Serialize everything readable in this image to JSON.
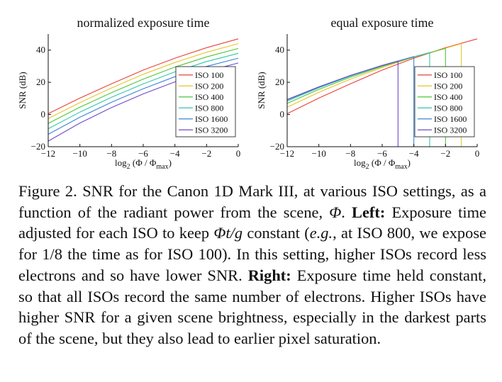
{
  "chart_data": [
    {
      "type": "line",
      "title": "normalized exposure time",
      "xlabel_base": "log",
      "xlabel_sub": "2",
      "xlabel_mid": " (Φ / Φ",
      "xlabel_max": "max",
      "xlabel_end": ")",
      "ylabel": "SNR (dB)",
      "xlim": [
        -12,
        0
      ],
      "ylim": [
        -20,
        50
      ],
      "xticks": [
        "−12",
        "−10",
        "−8",
        "−6",
        "−4",
        "−2",
        "0"
      ],
      "xtick_values": [
        -12,
        -10,
        -8,
        -6,
        -4,
        -2,
        0
      ],
      "yticks": [
        "−20",
        "0",
        "20",
        "40"
      ],
      "ytick_values": [
        -20,
        0,
        20,
        40
      ],
      "grid": false,
      "legend_position": "lower-right",
      "series": [
        {
          "name": "ISO 100",
          "color": "#e8413c",
          "x": [
            -12,
            -10,
            -8,
            -6,
            -4,
            -2,
            0
          ],
          "y": [
            0.5,
            10.2,
            19.1,
            27.6,
            35.0,
            41.5,
            47.0
          ]
        },
        {
          "name": "ISO 200",
          "color": "#e8c42a",
          "x": [
            -12,
            -10,
            -8,
            -6,
            -4,
            -2,
            0
          ],
          "y": [
            -2.5,
            7.4,
            16.5,
            25.0,
            32.3,
            38.7,
            44.0
          ]
        },
        {
          "name": "ISO 400",
          "color": "#4fc43a",
          "x": [
            -12,
            -10,
            -8,
            -6,
            -4,
            -2,
            0
          ],
          "y": [
            -5.5,
            4.5,
            13.6,
            22.0,
            29.5,
            35.8,
            41.0
          ]
        },
        {
          "name": "ISO 800",
          "color": "#30c8a8",
          "x": [
            -12,
            -10,
            -8,
            -6,
            -4,
            -2,
            0
          ],
          "y": [
            -8.8,
            1.5,
            10.7,
            19.0,
            26.5,
            32.9,
            38.0
          ]
        },
        {
          "name": "ISO 1600",
          "color": "#3c82dc",
          "x": [
            -12,
            -10,
            -8,
            -6,
            -4,
            -2,
            0
          ],
          "y": [
            -12.3,
            -1.7,
            7.6,
            16.0,
            23.5,
            29.9,
            35.0
          ]
        },
        {
          "name": "ISO 3200",
          "color": "#7048c8",
          "x": [
            -12,
            -10,
            -8,
            -6,
            -4,
            -2,
            0
          ],
          "y": [
            -16.5,
            -5.3,
            4.3,
            12.8,
            20.3,
            26.8,
            32.0
          ]
        }
      ]
    },
    {
      "type": "line",
      "title": "equal exposure time",
      "xlabel_base": "log",
      "xlabel_sub": "2",
      "xlabel_mid": " (Φ / Φ",
      "xlabel_max": "max",
      "xlabel_end": ")",
      "ylabel": "SNR (dB)",
      "xlim": [
        -12,
        0
      ],
      "ylim": [
        -20,
        50
      ],
      "xticks": [
        "−12",
        "−10",
        "−8",
        "−6",
        "−4",
        "−2",
        "0"
      ],
      "xtick_values": [
        -12,
        -10,
        -8,
        -6,
        -4,
        -2,
        0
      ],
      "yticks": [
        "−20",
        "0",
        "20",
        "40"
      ],
      "ytick_values": [
        -20,
        0,
        20,
        40
      ],
      "grid": false,
      "legend_position": "lower-right",
      "series": [
        {
          "name": "ISO 100",
          "color": "#e8413c",
          "x": [
            -12,
            -10,
            -8,
            -6,
            -4,
            -2,
            0
          ],
          "y": [
            0.5,
            10.2,
            19.1,
            27.6,
            35.0,
            41.5,
            47.0
          ],
          "saturation_x": 0
        },
        {
          "name": "ISO 200",
          "color": "#e8c42a",
          "x": [
            -12,
            -10,
            -8,
            -6,
            -4,
            -2,
            -1
          ],
          "y": [
            4.5,
            13.8,
            22.0,
            29.2,
            35.6,
            41.2,
            44.0
          ],
          "saturation_x": -1
        },
        {
          "name": "ISO 400",
          "color": "#4fc43a",
          "x": [
            -12,
            -10,
            -8,
            -6,
            -4,
            -2
          ],
          "y": [
            6.9,
            15.6,
            23.2,
            29.9,
            35.8,
            41.0
          ],
          "saturation_x": -2
        },
        {
          "name": "ISO 800",
          "color": "#30c8a8",
          "x": [
            -12,
            -10,
            -8,
            -6,
            -4,
            -3
          ],
          "y": [
            8.3,
            16.6,
            23.9,
            30.3,
            35.9,
            38.5
          ],
          "saturation_x": -3
        },
        {
          "name": "ISO 1600",
          "color": "#3c82dc",
          "x": [
            -12,
            -10,
            -8,
            -6,
            -4
          ],
          "y": [
            9.0,
            17.0,
            24.2,
            30.5,
            36.0
          ],
          "saturation_x": -4
        },
        {
          "name": "ISO 3200",
          "color": "#7048c8",
          "x": [
            -12,
            -10,
            -8,
            -6,
            -5
          ],
          "y": [
            9.3,
            17.2,
            24.3,
            30.5,
            33.2
          ],
          "saturation_x": -5
        }
      ]
    }
  ],
  "caption": {
    "label": "Figure 2.",
    "p1": " SNR for the Canon 1D Mark III, at various ISO settings, as a function of the radiant power from the scene, ",
    "phi": "Φ",
    "p2": ". ",
    "left_label": "Left:",
    "p3": " Exposure time adjusted for each ISO to keep ",
    "formula": "Φt/g",
    "p4": " constant (",
    "eg": "e.g.",
    "p5": ", at ISO 800, we expose for 1/8 the time as for ISO 100). In this setting, higher ISOs record less electrons and so have lower SNR. ",
    "right_label": "Right:",
    "p6": " Exposure time held constant, so that all ISOs record the same number of electrons. Higher ISOs have higher SNR for a given scene brightness, especially in the darkest parts of the scene, but they also lead to earlier pixel saturation."
  }
}
